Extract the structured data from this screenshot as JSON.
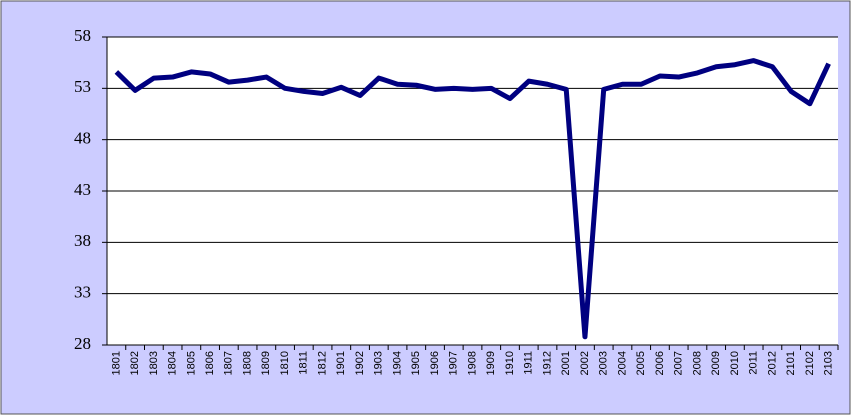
{
  "chart_data": {
    "type": "line",
    "categories": [
      "1801",
      "1802",
      "1803",
      "1804",
      "1805",
      "1806",
      "1807",
      "1808",
      "1809",
      "1810",
      "1811",
      "1812",
      "1901",
      "1902",
      "1903",
      "1904",
      "1905",
      "1906",
      "1907",
      "1908",
      "1909",
      "1910",
      "1911",
      "1912",
      "2001",
      "2002",
      "2003",
      "2004",
      "2005",
      "2006",
      "2007",
      "2008",
      "2009",
      "2010",
      "2011",
      "2012",
      "2101",
      "2102",
      "2103"
    ],
    "values": [
      54.6,
      52.8,
      54.0,
      54.1,
      54.6,
      54.4,
      53.6,
      53.8,
      54.1,
      53.0,
      52.7,
      52.5,
      53.1,
      52.3,
      54.0,
      53.4,
      53.3,
      52.9,
      53.0,
      52.9,
      53.0,
      52.0,
      53.7,
      53.4,
      52.9,
      28.8,
      52.9,
      53.4,
      53.4,
      54.2,
      54.1,
      54.5,
      55.1,
      55.3,
      55.7,
      55.1,
      52.7,
      51.5,
      55.4
    ],
    "color": "#000080",
    "ylim": [
      28,
      58
    ],
    "yticks": [
      28,
      33,
      38,
      43,
      48,
      53,
      58
    ],
    "grid": true
  }
}
